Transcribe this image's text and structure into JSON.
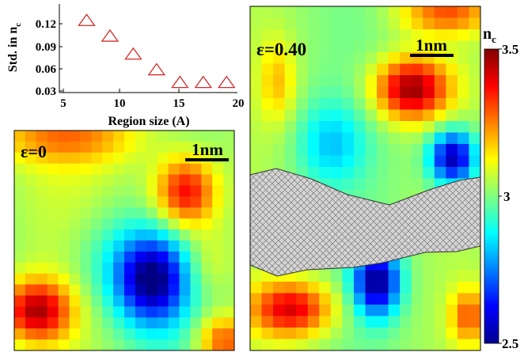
{
  "chart_data": [
    {
      "type": "scatter",
      "xlabel": "Region size (A)",
      "ylabel": "Std. in n",
      "ylabel_subscript": "c",
      "xlim": [
        5,
        20
      ],
      "ylim": [
        0.03,
        0.135
      ],
      "xticks": [
        "5",
        "10",
        "15",
        "20"
      ],
      "yticks": [
        "0.03",
        "0.06",
        "0.09",
        "0.12"
      ],
      "marker": "open-triangle",
      "marker_color": "#d42a2a",
      "x": [
        7,
        9,
        11,
        13,
        15,
        17,
        19
      ],
      "y": [
        0.124,
        0.103,
        0.079,
        0.058,
        0.041,
        0.041,
        0.041
      ]
    },
    {
      "type": "heatmap",
      "panel_label": "ε=0",
      "scale_bar": "1nm",
      "colormap": "jet"
    },
    {
      "type": "heatmap",
      "panel_label": "ε=0.40",
      "scale_bar": "1nm",
      "colormap": "jet",
      "masked_region_fill": "#cfcfcf"
    }
  ],
  "colorbar": {
    "label": "n",
    "label_subscript": "c",
    "ticks": [
      "3.5",
      "3",
      "2.5"
    ],
    "range": [
      2.5,
      3.5
    ]
  }
}
